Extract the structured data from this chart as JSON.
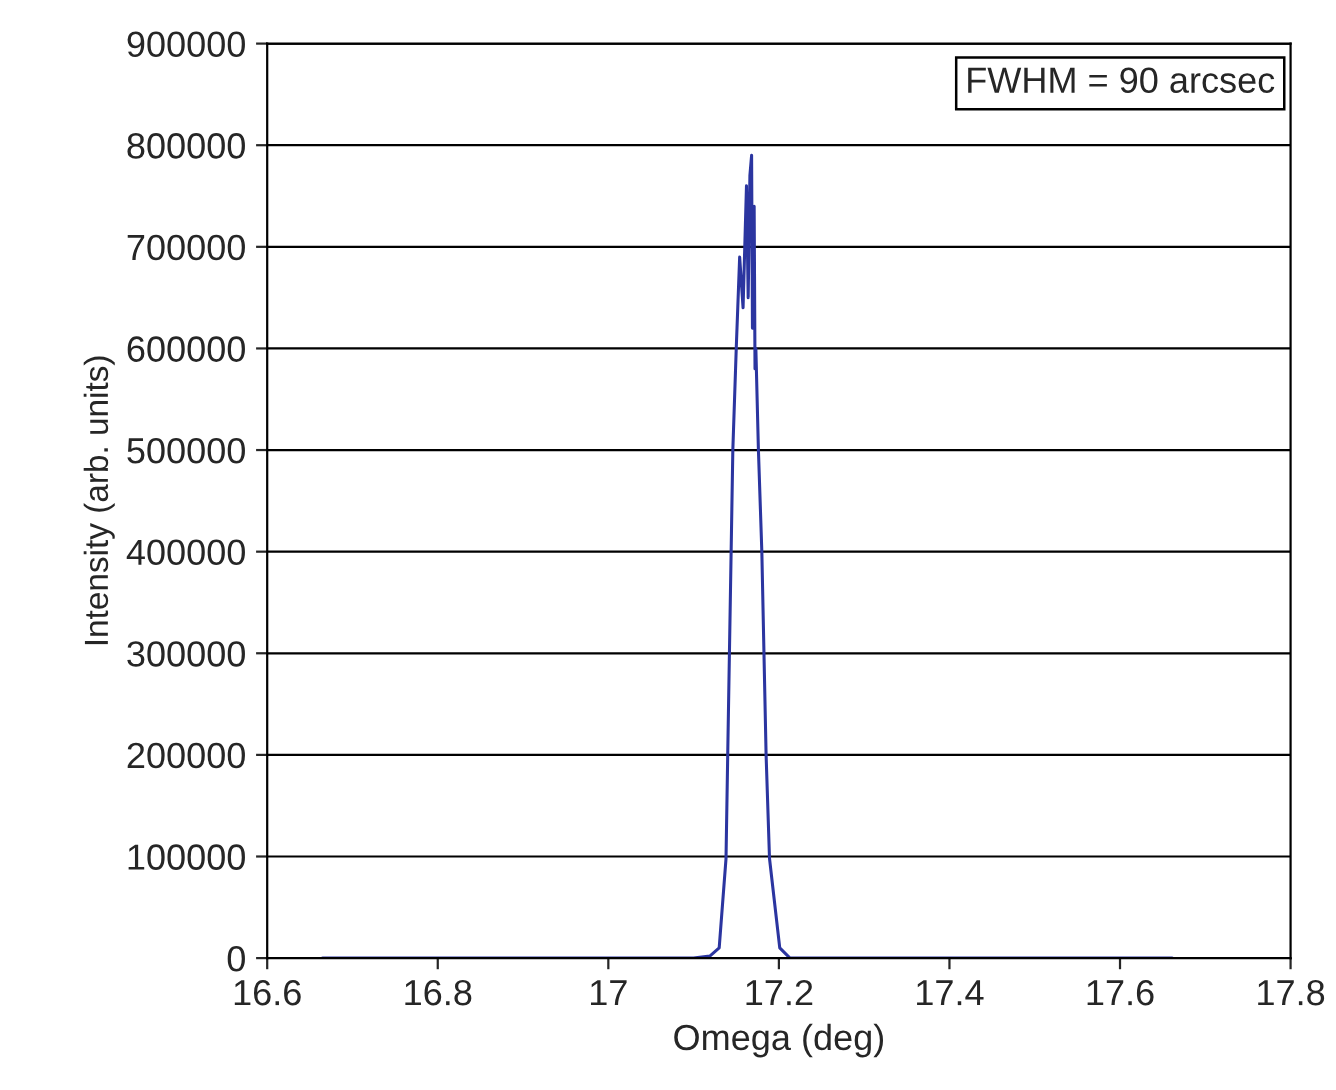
{
  "chart_data": {
    "type": "line",
    "xlabel": "Omega (deg)",
    "ylabel": "Intensity (arb. units)",
    "annotations": [
      "FWHM = 90 arcsec"
    ],
    "series": [
      {
        "color": "#2b35a0",
        "x": [
          16.665,
          17.0,
          17.1,
          17.119,
          17.13,
          17.138,
          17.14,
          17.144,
          17.146,
          17.15,
          17.154,
          17.158,
          17.16,
          17.162,
          17.164,
          17.166,
          17.168,
          17.169,
          17.171,
          17.172,
          17.173,
          17.176,
          17.18,
          17.185,
          17.189,
          17.201,
          17.213,
          17.3,
          17.661
        ],
        "values": [
          0,
          0,
          0,
          2000,
          10000,
          98000,
          200000,
          400000,
          500000,
          600000,
          690000,
          640000,
          700000,
          760000,
          650000,
          770000,
          790000,
          620000,
          740000,
          580000,
          600000,
          500000,
          400000,
          200000,
          98000,
          10000,
          0,
          0,
          0
        ]
      }
    ],
    "xlim": [
      16.6,
      17.8
    ],
    "xticks": [
      16.6,
      16.8,
      17,
      17.2,
      17.4,
      17.6,
      17.8
    ],
    "ylim": [
      0,
      900000
    ],
    "yticks": [
      0,
      100000,
      200000,
      300000,
      400000,
      500000,
      600000,
      700000,
      800000,
      900000
    ],
    "grid": "y",
    "legend": false
  }
}
